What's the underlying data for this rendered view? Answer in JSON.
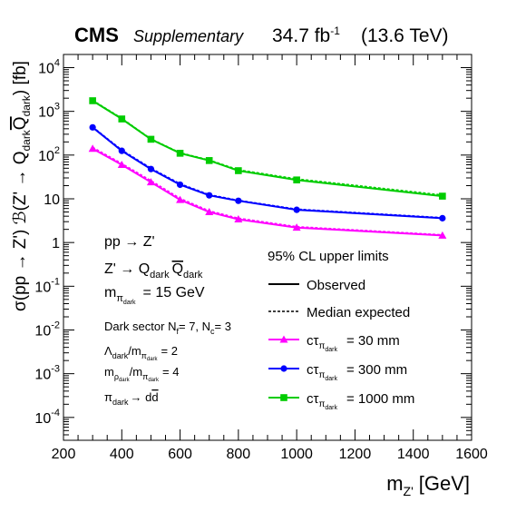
{
  "header": {
    "experiment": "CMS",
    "tag": "Supplementary",
    "lumi_value": "34.7 fb",
    "lumi_exp": "-1",
    "energy": "(13.6 TeV)"
  },
  "chart_data": {
    "type": "line",
    "x_scale": "linear",
    "y_scale": "log",
    "xlim": [
      200,
      1600
    ],
    "ylim": [
      3e-05,
      20000
    ],
    "grid": false,
    "x_ticks": [
      200,
      400,
      600,
      800,
      1000,
      1200,
      1400,
      1600
    ],
    "x_tick_labels": [
      "200",
      "400",
      "600",
      "800",
      "1000",
      "1200",
      "1400",
      "1600"
    ],
    "y_ticks": [
      0.0001,
      0.001,
      0.01,
      0.1,
      1,
      10,
      100,
      1000,
      10000
    ],
    "y_tick_labels": [
      {
        "base": "10",
        "exp": "-4"
      },
      {
        "base": "10",
        "exp": "-3"
      },
      {
        "base": "10",
        "exp": "-2"
      },
      {
        "base": "10",
        "exp": "-1"
      },
      {
        "base": "1",
        "exp": ""
      },
      {
        "base": "10",
        "exp": ""
      },
      {
        "base": "10",
        "exp": "2"
      },
      {
        "base": "10",
        "exp": "3"
      },
      {
        "base": "10",
        "exp": "4"
      }
    ],
    "xlabel": {
      "main": "m",
      "sub": "Z'",
      "unit": "[GeV]"
    },
    "ylabel": "σ(pp → Z') ℬ(Z' → Q_dark Q̄_dark) [fb]",
    "x": [
      300,
      400,
      500,
      600,
      700,
      800,
      1000,
      1500
    ],
    "series": [
      {
        "label": "cτ = 30 mm",
        "color": "#ff00ff",
        "marker": "triangle",
        "observed": [
          140,
          60,
          24,
          9.5,
          5.0,
          3.4,
          2.2,
          1.45
        ],
        "expected": [
          150,
          64,
          26,
          10.2,
          5.3,
          3.6,
          2.3,
          1.5
        ]
      },
      {
        "label": "cτ = 300 mm",
        "color": "#0000ff",
        "marker": "circle",
        "observed": [
          430,
          125,
          48,
          21,
          12,
          9.0,
          5.6,
          3.6
        ],
        "expected": [
          440,
          130,
          50,
          22,
          12.4,
          9.2,
          5.8,
          3.7
        ]
      },
      {
        "label": "cτ = 1000 mm",
        "color": "#00cc00",
        "marker": "square",
        "observed": [
          1750,
          670,
          230,
          110,
          75,
          44,
          27,
          11.5
        ],
        "expected": [
          1800,
          690,
          235,
          113,
          77,
          46,
          28.5,
          12.2
        ]
      }
    ],
    "legend": {
      "title": "95% CL upper limits",
      "observed_label": "Observed",
      "expected_label": "Median expected",
      "placement": "lower-right",
      "ctau_labels": [
        "= 30 mm",
        "= 300 mm",
        "= 1000 mm"
      ]
    },
    "annotations": {
      "process1": "pp → Z'",
      "process2": "Z' → Q",
      "mass": "= 15 GeV",
      "dark_sector": "Dark sector N",
      "nf_val": "= 7,  N",
      "nc_val": "= 3",
      "lambda": "= 2",
      "rho": "= 4",
      "pion_decay": "→ d"
    }
  }
}
